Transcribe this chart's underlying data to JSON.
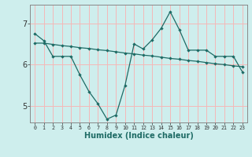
{
  "xlabel": "Humidex (Indice chaleur)",
  "x_values": [
    0,
    1,
    2,
    3,
    4,
    5,
    6,
    7,
    8,
    9,
    10,
    11,
    12,
    13,
    14,
    15,
    16,
    17,
    18,
    19,
    20,
    21,
    22,
    23
  ],
  "line1_y": [
    6.75,
    6.58,
    6.2,
    6.2,
    6.2,
    5.75,
    5.35,
    5.05,
    4.68,
    4.78,
    5.5,
    6.5,
    6.38,
    6.6,
    6.88,
    7.28,
    6.85,
    6.35,
    6.35,
    6.35,
    6.2,
    6.2,
    6.2,
    5.82
  ],
  "line2_y": [
    6.52,
    6.52,
    6.49,
    6.46,
    6.44,
    6.41,
    6.39,
    6.36,
    6.34,
    6.31,
    6.28,
    6.26,
    6.23,
    6.21,
    6.18,
    6.15,
    6.13,
    6.1,
    6.08,
    6.05,
    6.02,
    6.0,
    5.97,
    5.95
  ],
  "ylim": [
    4.6,
    7.45
  ],
  "yticks": [
    5,
    6,
    7
  ],
  "xlim": [
    -0.5,
    23.5
  ],
  "bg_color": "#ceeeed",
  "grid_color": "#f5b8b8",
  "line_color": "#1e6b65",
  "markersize": 2.2,
  "linewidth": 0.9
}
